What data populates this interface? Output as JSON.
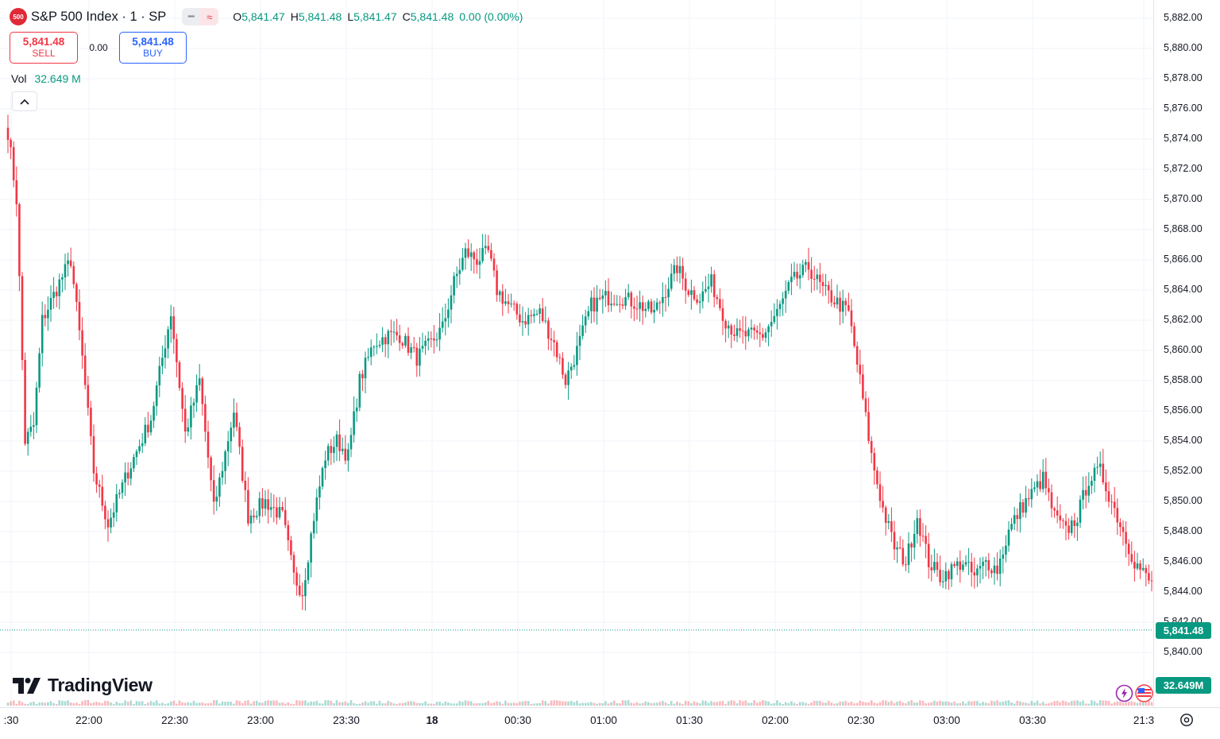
{
  "symbol": {
    "icon_text": "500",
    "title": "S&P 500 Index · 1 · SP"
  },
  "ohlc": {
    "o_label": "O",
    "o_value": "5,841.47",
    "h_label": "H",
    "h_value": "5,841.48",
    "l_label": "L",
    "l_value": "5,841.47",
    "c_label": "C",
    "c_value": "5,841.48",
    "change": "0.00 (0.00%)"
  },
  "trade": {
    "sell_price": "5,841.48",
    "sell_label": "SELL",
    "spread": "0.00",
    "buy_price": "5,841.48",
    "buy_label": "BUY"
  },
  "volume": {
    "label": "Vol",
    "value": "32.649 M"
  },
  "brand": {
    "name": "TradingView"
  },
  "price_axis": {
    "labels": [
      "5,882.00",
      "5,880.00",
      "5,878.00",
      "5,876.00",
      "5,874.00",
      "5,872.00",
      "5,870.00",
      "5,868.00",
      "5,866.00",
      "5,864.00",
      "5,862.00",
      "5,860.00",
      "5,858.00",
      "5,856.00",
      "5,854.00",
      "5,852.00",
      "5,850.00",
      "5,848.00",
      "5,846.00",
      "5,844.00",
      "5,842.00",
      "5,840.00"
    ],
    "last_price_tag": "5,841.48",
    "volume_tag": "32.649M"
  },
  "time_axis": {
    "labels": [
      ":30",
      "22:00",
      "22:30",
      "23:00",
      "23:30",
      "18",
      "00:30",
      "01:00",
      "01:30",
      "02:00",
      "02:30",
      "03:00",
      "03:30",
      "21:3"
    ]
  },
  "colors": {
    "up": "#089981",
    "down": "#f23645",
    "last_price": "#089981"
  },
  "chart_data": {
    "type": "candlestick",
    "interval": "1 minute",
    "x_range": [
      "21:30",
      "03:55"
    ],
    "ylim": [
      5839,
      5883
    ],
    "grid": true,
    "last_price": 5841.48,
    "anchor_closes": [
      [
        0,
        5874.5
      ],
      [
        3,
        5870
      ],
      [
        6,
        5854
      ],
      [
        9,
        5855
      ],
      [
        12,
        5862
      ],
      [
        18,
        5864.5
      ],
      [
        22,
        5866
      ],
      [
        26,
        5859.5
      ],
      [
        30,
        5852
      ],
      [
        35,
        5848.5
      ],
      [
        42,
        5852
      ],
      [
        50,
        5855.5
      ],
      [
        57,
        5862.5
      ],
      [
        62,
        5854.5
      ],
      [
        67,
        5858
      ],
      [
        72,
        5849.5
      ],
      [
        79,
        5856
      ],
      [
        84,
        5849
      ],
      [
        90,
        5850
      ],
      [
        96,
        5849
      ],
      [
        100,
        5845
      ],
      [
        103,
        5844
      ],
      [
        107,
        5849
      ],
      [
        111,
        5853
      ],
      [
        115,
        5854
      ],
      [
        119,
        5853
      ],
      [
        123,
        5858
      ],
      [
        128,
        5860.5
      ],
      [
        133,
        5861
      ],
      [
        137,
        5861
      ],
      [
        143,
        5859.5
      ],
      [
        148,
        5860.5
      ],
      [
        152,
        5861.5
      ],
      [
        156,
        5864.5
      ],
      [
        160,
        5866.5
      ],
      [
        164,
        5866
      ],
      [
        168,
        5866.5
      ],
      [
        171,
        5864
      ],
      [
        175,
        5863
      ],
      [
        180,
        5862
      ],
      [
        186,
        5862.5
      ],
      [
        191,
        5860.5
      ],
      [
        195,
        5858
      ],
      [
        199,
        5860
      ],
      [
        204,
        5863
      ],
      [
        209,
        5863.5
      ],
      [
        215,
        5863.5
      ],
      [
        221,
        5863
      ],
      [
        226,
        5862.5
      ],
      [
        230,
        5864
      ],
      [
        234,
        5865.5
      ],
      [
        238,
        5864
      ],
      [
        242,
        5863.5
      ],
      [
        246,
        5864.5
      ],
      [
        251,
        5862
      ],
      [
        255,
        5861
      ],
      [
        259,
        5861
      ],
      [
        264,
        5861
      ],
      [
        269,
        5862.5
      ],
      [
        274,
        5864.5
      ],
      [
        280,
        5865.5
      ],
      [
        285,
        5864
      ],
      [
        291,
        5863
      ],
      [
        294,
        5862.5
      ],
      [
        298,
        5858
      ],
      [
        302,
        5853
      ],
      [
        306,
        5849.5
      ],
      [
        310,
        5847
      ],
      [
        314,
        5846
      ],
      [
        318,
        5849
      ],
      [
        322,
        5846
      ],
      [
        326,
        5845
      ],
      [
        330,
        5845.5
      ],
      [
        334,
        5846
      ],
      [
        338,
        5845
      ],
      [
        342,
        5846
      ],
      [
        346,
        5845.5
      ],
      [
        350,
        5848
      ],
      [
        354,
        5849.5
      ],
      [
        358,
        5850.5
      ],
      [
        362,
        5851.5
      ],
      [
        366,
        5849
      ],
      [
        370,
        5848
      ],
      [
        374,
        5849
      ],
      [
        378,
        5851.5
      ],
      [
        382,
        5852
      ],
      [
        386,
        5850
      ],
      [
        390,
        5848
      ],
      [
        394,
        5846
      ],
      [
        398,
        5845
      ],
      [
        402,
        5844
      ],
      [
        406,
        5843.5
      ],
      [
        410,
        5844.5
      ],
      [
        414,
        5843
      ],
      [
        418,
        5842.5
      ],
      [
        421,
        5841
      ],
      [
        423,
        5842
      ],
      [
        425,
        5840.5
      ],
      [
        427,
        5841.48
      ]
    ]
  }
}
